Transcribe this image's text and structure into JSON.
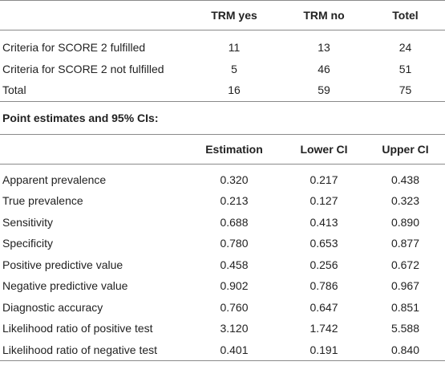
{
  "table1": {
    "headers": [
      "",
      "TRM yes",
      "TRM no",
      "Totel"
    ],
    "rows": [
      [
        "Criteria for SCORE 2 fulfilled",
        "11",
        "13",
        "24"
      ],
      [
        "Criteria for SCORE 2 not fulfilled",
        "5",
        "46",
        "51"
      ],
      [
        "Total",
        "16",
        "59",
        "75"
      ]
    ]
  },
  "section_title": "Point estimates and 95% CIs:",
  "table2": {
    "headers": [
      "",
      "Estimation",
      "Lower CI",
      "Upper CI"
    ],
    "rows": [
      [
        "Apparent prevalence",
        "0.320",
        "0.217",
        "0.438"
      ],
      [
        "True prevalence",
        "0.213",
        "0.127",
        "0.323"
      ],
      [
        "Sensitivity",
        "0.688",
        "0.413",
        "0.890"
      ],
      [
        "Specificity",
        "0.780",
        "0.653",
        "0.877"
      ],
      [
        "Positive predictive value",
        "0.458",
        "0.256",
        "0.672"
      ],
      [
        "Negative predictive value",
        "0.902",
        "0.786",
        "0.967"
      ],
      [
        "Diagnostic accuracy",
        "0.760",
        "0.647",
        "0.851"
      ],
      [
        "Likelihood ratio of positive test",
        "3.120",
        "1.742",
        "5.588"
      ],
      [
        "Likelihood ratio of negative test",
        "0.401",
        "0.191",
        "0.840"
      ]
    ]
  }
}
